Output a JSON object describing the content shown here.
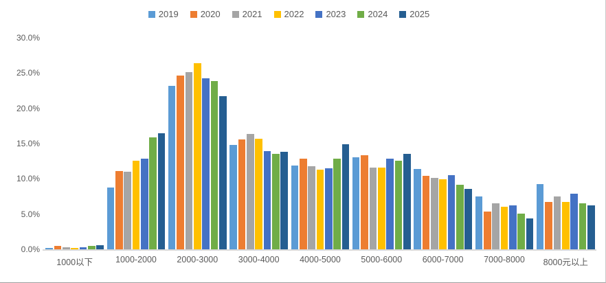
{
  "chart": {
    "background": "#ffffff",
    "axis_line_color": "#d9d9d9",
    "label_color": "#595959",
    "legend_position": "top"
  },
  "chart_data": {
    "type": "bar",
    "title": "",
    "xlabel": "",
    "ylabel": "",
    "grid": false,
    "ylim": [
      0,
      30
    ],
    "ytick_step": 5,
    "ytick_labels": [
      "0.0%",
      "5.0%",
      "10.0%",
      "15.0%",
      "20.0%",
      "25.0%",
      "30.0%"
    ],
    "categories": [
      "1000以下",
      "1000-2000",
      "2000-3000",
      "3000-4000",
      "4000-5000",
      "5000-6000",
      "6000-7000",
      "7000-8000",
      "8000元以上"
    ],
    "legend": [
      "2019",
      "2020",
      "2021",
      "2022",
      "2023",
      "2024",
      "2025"
    ],
    "series": [
      {
        "name": "2019",
        "color": "#5B9BD5",
        "values": [
          0.2,
          8.8,
          23.2,
          14.8,
          11.9,
          13.1,
          11.4,
          7.5,
          9.3
        ]
      },
      {
        "name": "2020",
        "color": "#ED7D31",
        "values": [
          0.5,
          11.1,
          24.6,
          15.6,
          12.9,
          13.3,
          10.4,
          5.4,
          6.7
        ]
      },
      {
        "name": "2021",
        "color": "#A5A5A5",
        "values": [
          0.3,
          11.0,
          25.1,
          16.4,
          11.8,
          11.6,
          10.1,
          6.5,
          7.5
        ]
      },
      {
        "name": "2022",
        "color": "#FFC000",
        "values": [
          0.2,
          12.6,
          26.4,
          15.7,
          11.3,
          11.6,
          9.9,
          6.0,
          6.7
        ]
      },
      {
        "name": "2023",
        "color": "#4472C4",
        "values": [
          0.3,
          12.9,
          24.3,
          13.9,
          11.5,
          12.9,
          10.5,
          6.2,
          7.9
        ]
      },
      {
        "name": "2024",
        "color": "#70AD47",
        "values": [
          0.5,
          15.9,
          23.9,
          13.5,
          12.9,
          12.6,
          9.2,
          5.1,
          6.5
        ]
      },
      {
        "name": "2025",
        "color": "#255E91",
        "values": [
          0.6,
          16.5,
          21.7,
          13.8,
          14.9,
          13.5,
          8.6,
          4.4,
          6.2
        ]
      }
    ]
  }
}
